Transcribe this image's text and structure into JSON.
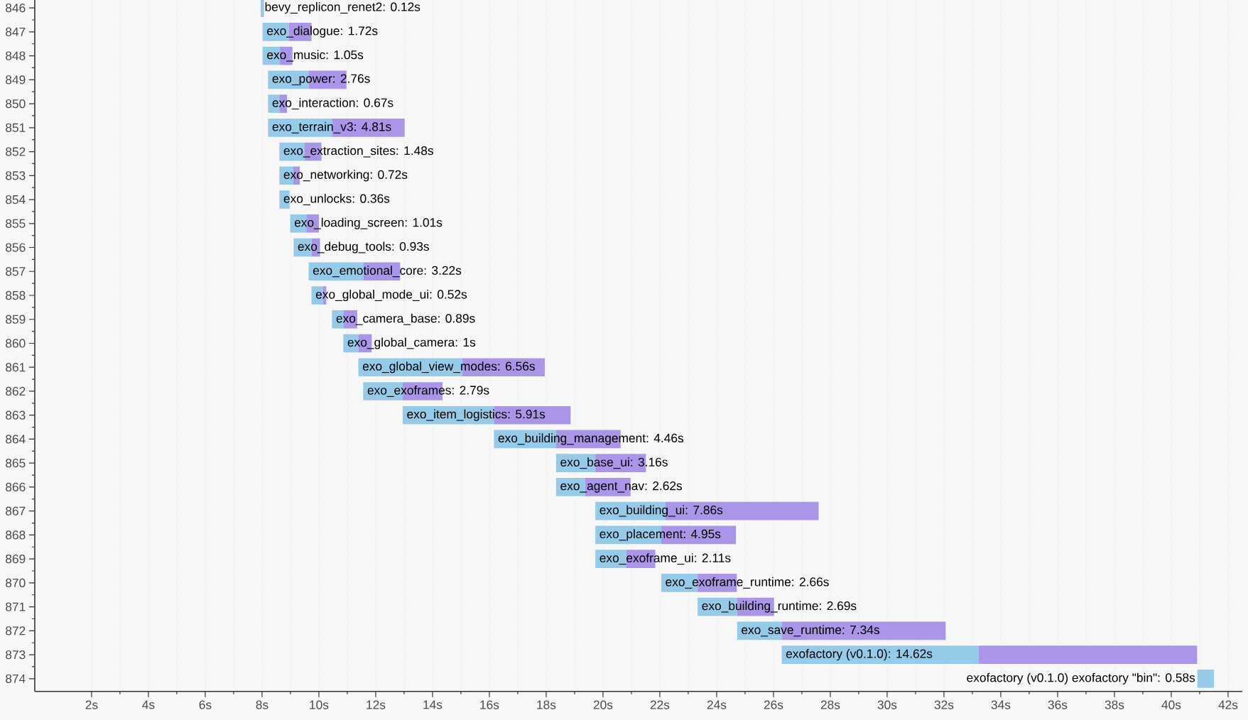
{
  "chart_data": {
    "type": "bar",
    "orientation": "horizontal",
    "categories": [
      "846",
      "847",
      "848",
      "849",
      "850",
      "851",
      "852",
      "853",
      "854",
      "855",
      "856",
      "857",
      "858",
      "859",
      "860",
      "861",
      "862",
      "863",
      "864",
      "865",
      "866",
      "867",
      "868",
      "869",
      "870",
      "871",
      "872",
      "873",
      "874"
    ],
    "series": [
      {
        "color": "#95cbe8",
        "base": [
          7.95,
          8.02,
          8.02,
          8.21,
          8.21,
          8.21,
          8.61,
          8.61,
          8.61,
          8.99,
          9.11,
          9.64,
          9.74,
          10.46,
          10.86,
          11.39,
          11.56,
          12.95,
          16.16,
          18.35,
          18.35,
          19.73,
          19.73,
          19.73,
          22.05,
          23.33,
          24.72,
          26.29,
          40.92
        ],
        "values": [
          0.12,
          0.92,
          0.6,
          1.43,
          0.4,
          2.25,
          0.88,
          0.49,
          0.36,
          0.57,
          0.63,
          1.93,
          0.4,
          0.4,
          0.53,
          3.66,
          1.39,
          3.21,
          2.19,
          1.38,
          1.02,
          2.46,
          2.32,
          1.09,
          1.28,
          1.39,
          1.57,
          6.93,
          0.58
        ]
      },
      {
        "color": "#aa95e8",
        "base": [
          null,
          8.94,
          8.62,
          9.64,
          8.61,
          10.46,
          9.49,
          9.1,
          null,
          9.56,
          9.74,
          11.57,
          10.14,
          10.86,
          11.39,
          15.05,
          12.95,
          16.16,
          18.35,
          19.73,
          19.37,
          22.19,
          22.05,
          20.82,
          23.33,
          24.72,
          26.29,
          33.22,
          null
        ],
        "values": [
          null,
          0.8,
          0.45,
          1.33,
          0.27,
          2.56,
          0.6,
          0.23,
          null,
          0.44,
          0.3,
          1.29,
          0.12,
          0.49,
          0.47,
          2.9,
          1.4,
          2.7,
          2.27,
          1.78,
          1.6,
          5.4,
          2.63,
          1.02,
          1.38,
          1.3,
          5.77,
          7.69,
          null
        ]
      }
    ],
    "annotations": [
      {
        "text": "bevy_replicon_renet2: 0.12s",
        "x": 7.95,
        "y": "846"
      },
      {
        "text": "exo_dialogue: 1.72s",
        "x": 8.02,
        "y": "847"
      },
      {
        "text": "exo_music: 1.05s",
        "x": 8.02,
        "y": "848"
      },
      {
        "text": "exo_power: 2.76s",
        "x": 8.21,
        "y": "849"
      },
      {
        "text": "exo_interaction: 0.67s",
        "x": 8.21,
        "y": "850"
      },
      {
        "text": "exo_terrain_v3: 4.81s",
        "x": 8.21,
        "y": "851"
      },
      {
        "text": "exo_extraction_sites: 1.48s",
        "x": 8.61,
        "y": "852"
      },
      {
        "text": "exo_networking: 0.72s",
        "x": 8.61,
        "y": "853"
      },
      {
        "text": "exo_unlocks: 0.36s",
        "x": 8.61,
        "y": "854"
      },
      {
        "text": "exo_loading_screen: 1.01s",
        "x": 8.99,
        "y": "855"
      },
      {
        "text": "exo_debug_tools: 0.93s",
        "x": 9.11,
        "y": "856"
      },
      {
        "text": "exo_emotional_core: 3.22s",
        "x": 9.64,
        "y": "857"
      },
      {
        "text": "exo_global_mode_ui: 0.52s",
        "x": 9.74,
        "y": "858"
      },
      {
        "text": "exo_camera_base: 0.89s",
        "x": 10.46,
        "y": "859"
      },
      {
        "text": "exo_global_camera: 1s",
        "x": 10.86,
        "y": "860"
      },
      {
        "text": "exo_global_view_modes: 6.56s",
        "x": 11.39,
        "y": "861"
      },
      {
        "text": "exo_exoframes: 2.79s",
        "x": 11.56,
        "y": "862"
      },
      {
        "text": "exo_item_logistics: 5.91s",
        "x": 12.95,
        "y": "863"
      },
      {
        "text": "exo_building_management: 4.46s",
        "x": 16.16,
        "y": "864"
      },
      {
        "text": "exo_base_ui: 3.16s",
        "x": 18.35,
        "y": "865"
      },
      {
        "text": "exo_agent_nav: 2.62s",
        "x": 18.35,
        "y": "866"
      },
      {
        "text": "exo_building_ui: 7.86s",
        "x": 19.73,
        "y": "867"
      },
      {
        "text": "exo_placement: 4.95s",
        "x": 19.73,
        "y": "868"
      },
      {
        "text": "exo_exoframe_ui: 2.11s",
        "x": 19.73,
        "y": "869"
      },
      {
        "text": "exo_exoframe_runtime: 2.66s",
        "x": 22.05,
        "y": "870"
      },
      {
        "text": "exo_building_runtime: 2.69s",
        "x": 23.33,
        "y": "871"
      },
      {
        "text": "exo_save_runtime: 7.34s",
        "x": 24.72,
        "y": "872"
      },
      {
        "text": "exofactory (v0.1.0): 14.62s",
        "x": 26.29,
        "y": "873"
      },
      {
        "text": "exofactory (v0.1.0) exofactory \"bin\": 0.58s",
        "x": 40.92,
        "y": "874"
      }
    ],
    "xlim": [
      0,
      42.5
    ],
    "xticks": [
      {
        "value": 2,
        "label": "2s"
      },
      {
        "value": 4,
        "label": "4s"
      },
      {
        "value": 6,
        "label": "6s"
      },
      {
        "value": 8,
        "label": "8s"
      },
      {
        "value": 10,
        "label": "10s"
      },
      {
        "value": 12,
        "label": "12s"
      },
      {
        "value": 14,
        "label": "14s"
      },
      {
        "value": 16,
        "label": "16s"
      },
      {
        "value": 18,
        "label": "18s"
      },
      {
        "value": 20,
        "label": "20s"
      },
      {
        "value": 22,
        "label": "22s"
      },
      {
        "value": 24,
        "label": "24s"
      },
      {
        "value": 26,
        "label": "26s"
      },
      {
        "value": 28,
        "label": "28s"
      },
      {
        "value": 30,
        "label": "30s"
      },
      {
        "value": 32,
        "label": "32s"
      },
      {
        "value": 34,
        "label": "34s"
      },
      {
        "value": 36,
        "label": "36s"
      },
      {
        "value": 38,
        "label": "38s"
      },
      {
        "value": 40,
        "label": "40s"
      },
      {
        "value": 42,
        "label": "42s"
      }
    ],
    "grid": "x"
  }
}
